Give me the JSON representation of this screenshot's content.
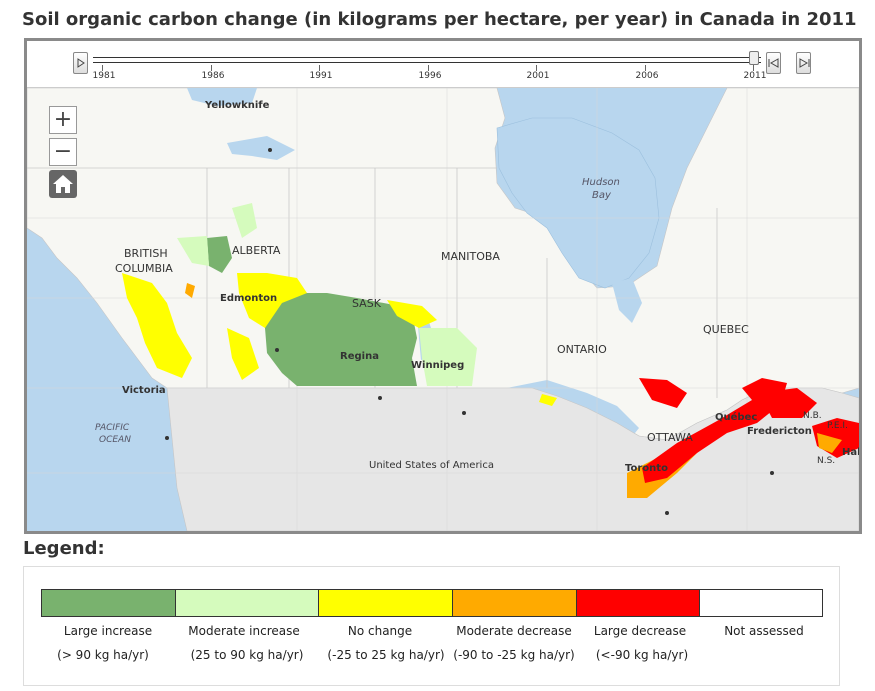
{
  "title": "Soil organic carbon change (in kilograms per hectare, per year) in Canada in 2011",
  "timeslider": {
    "play_icon": "play-icon",
    "ticks": [
      "1981",
      "1986",
      "1991",
      "1996",
      "2001",
      "2006",
      "2011"
    ],
    "current_year": "2011",
    "previous_icon": "step-back-icon",
    "next_icon": "step-forward-icon"
  },
  "map_controls": {
    "zoom_in": "+",
    "zoom_out": "−",
    "home_icon": "home-icon"
  },
  "map_labels": {
    "yellowknife": "Yellowknife",
    "hudson_bay_1": "Hudson",
    "hudson_bay_2": "Bay",
    "british": "BRITISH",
    "columbia": "COLUMBIA",
    "alberta": "ALBERTA",
    "manitoba": "MANITOBA",
    "edmonton": "Edmonton",
    "sask": "SASK",
    "quebec": "QUEBEC",
    "regina": "Regina",
    "winnipeg": "Winnipeg",
    "ontario": "ONTARIO",
    "victoria": "Victoria",
    "pacific_1": "PACIFIC",
    "pacific_2": "OCEAN",
    "quebec_city": "Québec",
    "ottawa": "OTTAWA",
    "fredericton": "Fredericton",
    "nb": "N.B.",
    "pei": "P.E.I.",
    "ns": "N.S.",
    "halifax": "Hali",
    "toronto": "Toronto",
    "usa": "United States of America"
  },
  "legend": {
    "title": "Legend:",
    "items": [
      {
        "label": "Large increase",
        "range": "(> 90 kg ha/yr)",
        "color": "#79b26e"
      },
      {
        "label": "Moderate increase",
        "range": "(25 to 90 kg ha/yr)",
        "color": "#d5fbbd"
      },
      {
        "label": "No change",
        "range": "(-25 to 25 kg ha/yr)",
        "color": "#ffff00"
      },
      {
        "label": "Moderate decrease",
        "range": "(-90 to -25 kg ha/yr)",
        "color": "#ffaa00"
      },
      {
        "label": "Large decrease",
        "range": "(<-90 kg ha/yr)",
        "color": "#ff0000"
      },
      {
        "label": "Not assessed",
        "range": "",
        "color": "#ffffff"
      }
    ]
  }
}
